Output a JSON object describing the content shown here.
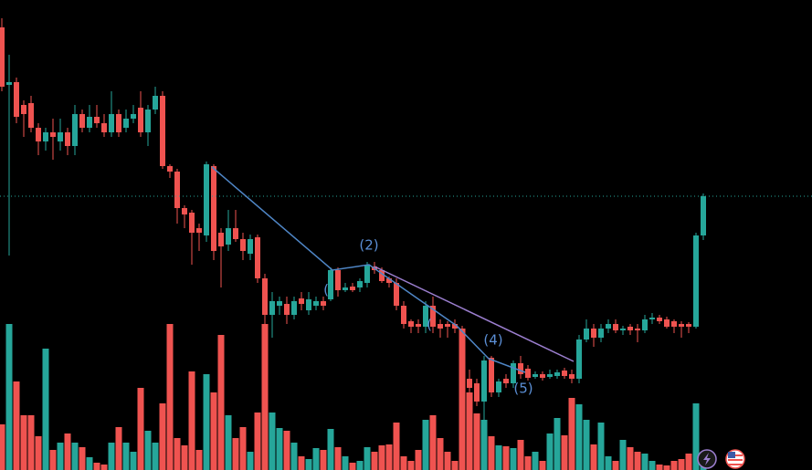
{
  "chart_data": {
    "type": "candlestick",
    "up_color": "#26a69a",
    "down_color": "#ef5350",
    "ylim": [
      0,
      515
    ],
    "volume_ylim": [
      0,
      515
    ],
    "open": [
      485,
      422,
      425,
      400,
      402,
      375,
      360,
      370,
      360,
      370,
      355,
      390,
      375,
      387,
      380,
      370,
      390,
      375,
      385,
      397,
      370,
      395,
      410,
      333,
      327,
      287,
      282,
      265,
      257,
      333,
      260,
      247,
      265,
      253,
      237,
      255,
      210,
      170,
      180,
      182,
      170,
      188,
      175,
      180,
      185,
      187,
      219,
      197,
      201,
      200,
      205,
      223,
      219,
      210,
      205,
      180,
      163,
      160,
      157,
      180,
      160,
      160,
      160,
      155,
      100,
      95,
      75,
      123,
      85,
      100,
      95,
      117,
      111,
      102,
      105,
      102,
      103,
      109,
      105,
      100,
      143,
      155,
      145,
      155,
      160,
      153,
      157,
      155,
      153,
      165,
      167,
      165,
      163,
      160,
      160,
      157,
      257
    ],
    "close": [
      420,
      425,
      387,
      390,
      375,
      360,
      370,
      365,
      370,
      355,
      390,
      375,
      387,
      380,
      370,
      390,
      370,
      385,
      390,
      370,
      395,
      410,
      333,
      327,
      287,
      280,
      260,
      260,
      335,
      240,
      245,
      265,
      253,
      240,
      253,
      210,
      170,
      185,
      185,
      170,
      185,
      182,
      187,
      185,
      180,
      219,
      197,
      200,
      197,
      207,
      225,
      219,
      207,
      205,
      180,
      160,
      157,
      157,
      180,
      157,
      155,
      157,
      155,
      100,
      90,
      75,
      120,
      85,
      97,
      95,
      117,
      105,
      101,
      105,
      101,
      105,
      107,
      103,
      100,
      143,
      155,
      145,
      155,
      160,
      153,
      155,
      153,
      153,
      165,
      167,
      163,
      157,
      157,
      157,
      157,
      257,
      300
    ],
    "high": [
      495,
      455,
      430,
      405,
      410,
      380,
      375,
      385,
      385,
      375,
      400,
      395,
      400,
      400,
      390,
      415,
      395,
      395,
      400,
      415,
      400,
      420,
      415,
      335,
      330,
      290,
      285,
      270,
      338,
      335,
      265,
      285,
      285,
      260,
      258,
      258,
      215,
      195,
      190,
      190,
      190,
      195,
      195,
      190,
      190,
      222,
      222,
      205,
      205,
      210,
      228,
      228,
      222,
      212,
      210,
      185,
      165,
      165,
      185,
      190,
      165,
      163,
      165,
      158,
      110,
      100,
      125,
      125,
      100,
      105,
      120,
      125,
      115,
      108,
      108,
      110,
      110,
      112,
      110,
      148,
      165,
      160,
      160,
      165,
      165,
      158,
      160,
      160,
      170,
      172,
      170,
      168,
      165,
      163,
      162,
      260,
      303
    ],
    "low": [
      415,
      235,
      380,
      365,
      370,
      345,
      350,
      340,
      350,
      345,
      345,
      370,
      370,
      375,
      365,
      365,
      365,
      370,
      380,
      365,
      355,
      390,
      330,
      320,
      270,
      265,
      225,
      240,
      250,
      230,
      200,
      240,
      250,
      230,
      230,
      205,
      160,
      145,
      170,
      160,
      165,
      175,
      170,
      175,
      175,
      185,
      190,
      195,
      195,
      195,
      200,
      215,
      205,
      200,
      175,
      155,
      150,
      150,
      150,
      150,
      145,
      145,
      150,
      80,
      80,
      70,
      55,
      80,
      80,
      90,
      90,
      100,
      98,
      100,
      98,
      100,
      100,
      100,
      95,
      95,
      140,
      135,
      140,
      150,
      150,
      148,
      148,
      140,
      150,
      160,
      160,
      155,
      150,
      145,
      150,
      155,
      252
    ],
    "volume": [
      50,
      160,
      97,
      60,
      60,
      37,
      133,
      22,
      30,
      40,
      30,
      25,
      14,
      8,
      6,
      30,
      47,
      30,
      20,
      90,
      43,
      30,
      73,
      160,
      35,
      27,
      108,
      22,
      105,
      85,
      148,
      60,
      35,
      47,
      20,
      63,
      160,
      63,
      46,
      43,
      30,
      15,
      12,
      24,
      22,
      45,
      25,
      15,
      8,
      10,
      25,
      20,
      27,
      28,
      52,
      15,
      10,
      22,
      55,
      60,
      35,
      20,
      10,
      155,
      85,
      62,
      55,
      37,
      27,
      26,
      24,
      33,
      15,
      20,
      10,
      40,
      57,
      38,
      79,
      72,
      55,
      28,
      52,
      15,
      10,
      33,
      25,
      20,
      18,
      10,
      6,
      5,
      10,
      12,
      18,
      73,
      20
    ],
    "annotations": [
      "(2)",
      "(4)",
      "(5)",
      "(",
      "("
    ]
  }
}
